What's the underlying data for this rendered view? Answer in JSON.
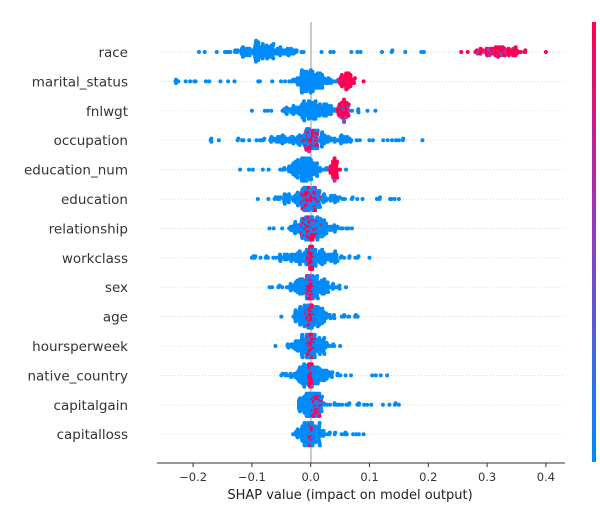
{
  "chart_data": {
    "type": "scatter",
    "subtype": "shap-beeswarm-summary",
    "title": "",
    "xlabel": "SHAP value (impact on model output)",
    "ylabel": "",
    "xlim": [
      -0.265,
      0.43
    ],
    "xticks": [
      -0.2,
      -0.1,
      0.0,
      0.1,
      0.2,
      0.3,
      0.4
    ],
    "xtick_labels": [
      "−0.2",
      "−0.1",
      "0.0",
      "0.1",
      "0.2",
      "0.3",
      "0.4"
    ],
    "grid": "dotted horizontal per feature",
    "colorbar": {
      "low_color": "#008bfb",
      "high_color": "#ff0051",
      "placement": "right"
    },
    "colors": {
      "low": "#008bfb",
      "high": "#ff0051",
      "zero_line": "#999999"
    },
    "features": [
      {
        "name": "race",
        "min": -0.19,
        "max": 0.4,
        "low_value_center": -0.08,
        "low_value_range": [
          -0.19,
          0.2
        ],
        "high_value_center": 0.32,
        "high_value_range": [
          0.25,
          0.4
        ]
      },
      {
        "name": "marital_status",
        "min": -0.23,
        "max": 0.09,
        "low_value_center": 0.0,
        "low_value_range": [
          -0.23,
          0.05
        ],
        "high_value_center": 0.06,
        "high_value_range": [
          0.04,
          0.09
        ]
      },
      {
        "name": "fnlwgt",
        "min": -0.1,
        "max": 0.11,
        "low_value_center": 0.0,
        "low_value_range": [
          -0.1,
          0.11
        ],
        "high_value_center": 0.055,
        "high_value_range": [
          0.04,
          0.07
        ]
      },
      {
        "name": "occupation",
        "min": -0.17,
        "max": 0.19,
        "low_value_center": 0.0,
        "low_value_range": [
          -0.17,
          0.19
        ],
        "high_value_center": 0.0,
        "high_value_range": [
          -0.02,
          0.03
        ]
      },
      {
        "name": "education_num",
        "min": -0.12,
        "max": 0.06,
        "low_value_center": -0.01,
        "low_value_range": [
          -0.12,
          0.03
        ],
        "high_value_center": 0.04,
        "high_value_range": [
          0.03,
          0.055
        ]
      },
      {
        "name": "education",
        "min": -0.09,
        "max": 0.15,
        "low_value_center": 0.0,
        "low_value_range": [
          -0.09,
          0.15
        ],
        "high_value_center": 0.0,
        "high_value_range": [
          -0.03,
          0.03
        ]
      },
      {
        "name": "relationship",
        "min": -0.07,
        "max": 0.07,
        "low_value_center": 0.0,
        "low_value_range": [
          -0.07,
          0.07
        ],
        "high_value_center": 0.0,
        "high_value_range": [
          -0.02,
          0.03
        ]
      },
      {
        "name": "workclass",
        "min": -0.1,
        "max": 0.1,
        "low_value_center": 0.0,
        "low_value_range": [
          -0.1,
          0.1
        ],
        "high_value_center": 0.0,
        "high_value_range": [
          -0.01,
          0.01
        ]
      },
      {
        "name": "sex",
        "min": -0.07,
        "max": 0.06,
        "low_value_center": 0.0,
        "low_value_range": [
          -0.07,
          0.06
        ],
        "high_value_center": 0.0,
        "high_value_range": [
          -0.01,
          0.01
        ]
      },
      {
        "name": "age",
        "min": -0.05,
        "max": 0.08,
        "low_value_center": 0.0,
        "low_value_range": [
          -0.05,
          0.08
        ],
        "high_value_center": 0.0,
        "high_value_range": [
          -0.01,
          0.01
        ]
      },
      {
        "name": "hoursperweek",
        "min": -0.06,
        "max": 0.05,
        "low_value_center": 0.0,
        "low_value_range": [
          -0.06,
          0.05
        ],
        "high_value_center": 0.0,
        "high_value_range": [
          -0.01,
          0.01
        ]
      },
      {
        "name": "native_country",
        "min": -0.05,
        "max": 0.13,
        "low_value_center": 0.0,
        "low_value_range": [
          -0.05,
          0.13
        ],
        "high_value_center": 0.0,
        "high_value_range": [
          -0.005,
          0.005
        ]
      },
      {
        "name": "capitalgain",
        "min": -0.02,
        "max": 0.15,
        "low_value_center": 0.0,
        "low_value_range": [
          -0.02,
          0.15
        ],
        "high_value_center": 0.01,
        "high_value_range": [
          0.0,
          0.03
        ]
      },
      {
        "name": "capitalloss",
        "min": -0.03,
        "max": 0.09,
        "low_value_center": 0.0,
        "low_value_range": [
          -0.03,
          0.09
        ],
        "high_value_center": 0.0,
        "high_value_range": [
          -0.003,
          0.003
        ]
      }
    ]
  }
}
